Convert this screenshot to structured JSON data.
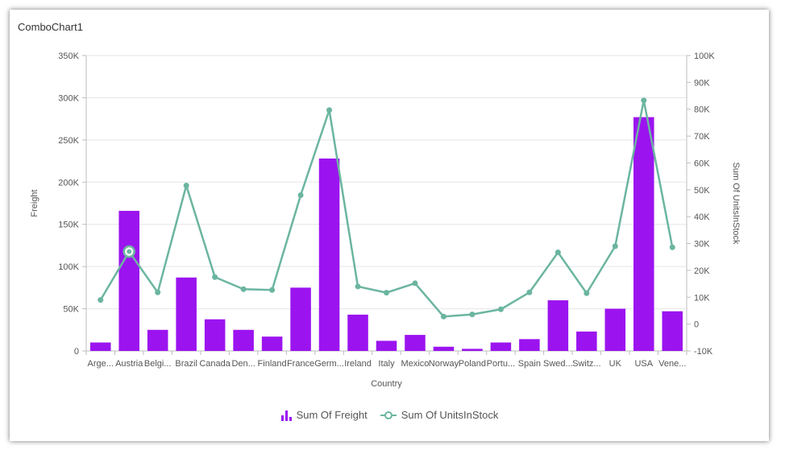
{
  "title": "ComboChart1",
  "colors": {
    "bar": "#9b14ef",
    "line": "#6bb5a0",
    "grid": "#e5e5e5",
    "axis": "#bdbdbd"
  },
  "chart_data": {
    "type": "bar+line",
    "categories": [
      "Arge...",
      "Austria",
      "Belgi...",
      "Brazil",
      "Canada",
      "Den...",
      "Finland",
      "France",
      "Germ...",
      "Ireland",
      "Italy",
      "Mexico",
      "Norway",
      "Poland",
      "Portu...",
      "Spain",
      "Swed...",
      "Switz...",
      "UK",
      "USA",
      "Vene..."
    ],
    "xlabel": "Country",
    "ylabel": "Freight",
    "y2label": "Sum Of UnitsInStock",
    "ylim": [
      0,
      350000
    ],
    "y2lim": [
      -10000,
      100000
    ],
    "yticks": [
      "0",
      "50K",
      "100K",
      "150K",
      "200K",
      "250K",
      "300K",
      "350K"
    ],
    "y2ticks": [
      "-10K",
      "0",
      "10K",
      "20K",
      "30K",
      "40K",
      "50K",
      "60K",
      "70K",
      "80K",
      "90K",
      "100K"
    ],
    "grid": true,
    "legend_position": "bottom",
    "series": [
      {
        "name": "Sum Of Freight",
        "type": "bar",
        "axis": "left",
        "values": [
          10000,
          166000,
          25000,
          87000,
          37500,
          25000,
          17000,
          75000,
          228000,
          43000,
          12000,
          19000,
          5000,
          2500,
          10000,
          14000,
          60000,
          23000,
          50000,
          277000,
          47000
        ]
      },
      {
        "name": "Sum Of UnitsInStock",
        "type": "line",
        "axis": "right",
        "values": [
          9000,
          27000,
          11800,
          51600,
          17500,
          13000,
          12700,
          48000,
          79700,
          14000,
          11700,
          15200,
          2800,
          3600,
          5500,
          11800,
          26700,
          11500,
          29000,
          83300,
          28600
        ]
      }
    ],
    "highlighted_point": {
      "series": "Sum Of UnitsInStock",
      "category": "Austria"
    }
  },
  "legend": [
    {
      "label": "Sum Of Freight",
      "icon": "bar-chart-icon"
    },
    {
      "label": "Sum Of UnitsInStock",
      "icon": "line-marker-icon"
    }
  ]
}
